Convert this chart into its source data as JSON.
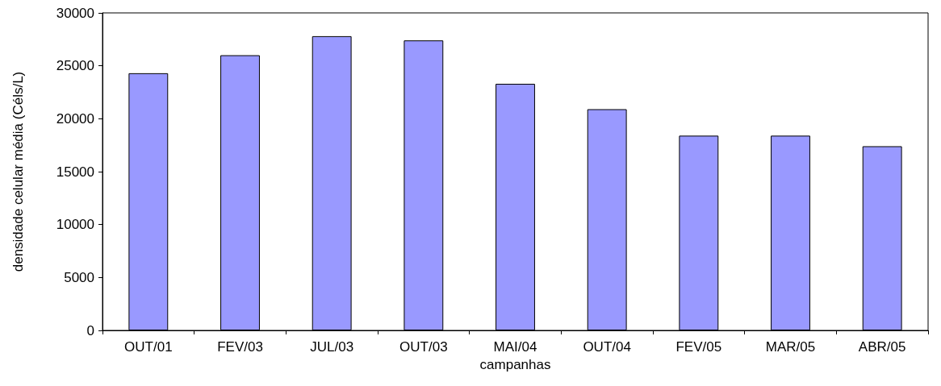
{
  "chart_data": {
    "type": "bar",
    "xlabel": "campanhas",
    "ylabel": "densidade celular média (Céls/L)",
    "categories": [
      "OUT/01",
      "FEV/03",
      "JUL/03",
      "OUT/03",
      "MAI/04",
      "OUT/04",
      "FEV/05",
      "MAR/05",
      "ABR/05"
    ],
    "values": [
      24300,
      26000,
      27800,
      27400,
      23300,
      20900,
      18400,
      18400,
      17400
    ],
    "color": "#9999ff",
    "ylim": [
      0,
      30000
    ],
    "yticks": [
      0,
      5000,
      10000,
      15000,
      20000,
      25000,
      30000
    ],
    "grid": false
  }
}
